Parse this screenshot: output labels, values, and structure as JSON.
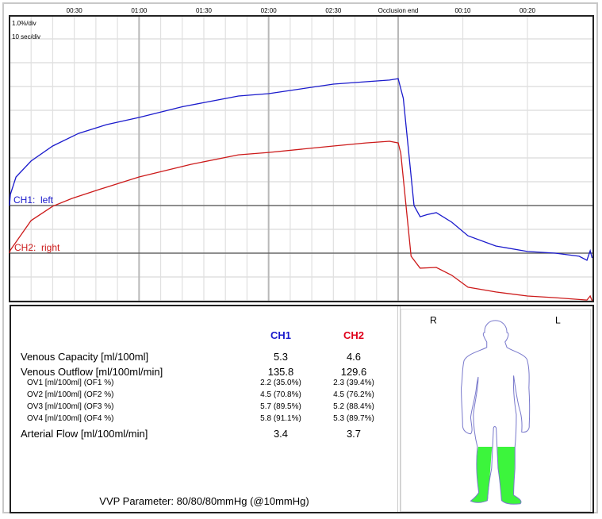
{
  "chart_data": {
    "type": "line",
    "scale_labels": {
      "amplitude": "1.0%/div",
      "time": "10 sec/div"
    },
    "x_ticks_occlusion": [
      {
        "t": 30,
        "label": "00:30"
      },
      {
        "t": 60,
        "label": "01:00"
      },
      {
        "t": 90,
        "label": "01:30"
      },
      {
        "t": 120,
        "label": "02:00"
      },
      {
        "t": 150,
        "label": "02:30"
      }
    ],
    "occlusion_end": {
      "t": 180,
      "label": "Occlusion end"
    },
    "x_ticks_outflow": [
      {
        "t": 10,
        "label": "00:10"
      },
      {
        "t": 20,
        "label": "00:20"
      }
    ],
    "occlusion_range_s": [
      0,
      180
    ],
    "outflow_range_s": [
      0,
      30
    ],
    "y_unit": "% volume change",
    "grid": true,
    "series": [
      {
        "name": "CH1:  left",
        "color": "#1a1acc",
        "baseline_offset_pct": 0,
        "occlusion": [
          [
            0,
            0
          ],
          [
            0.4,
            0.47
          ],
          [
            3,
            1.2
          ],
          [
            10,
            1.87
          ],
          [
            20,
            2.5
          ],
          [
            32,
            3.03
          ],
          [
            45,
            3.4
          ],
          [
            60,
            3.7
          ],
          [
            80,
            4.15
          ],
          [
            106,
            4.6
          ],
          [
            120,
            4.7
          ],
          [
            135,
            4.9
          ],
          [
            150,
            5.1
          ],
          [
            165,
            5.2
          ],
          [
            176,
            5.27
          ],
          [
            180,
            5.33
          ]
        ],
        "outflow": [
          [
            0,
            5.33
          ],
          [
            0.8,
            4.5
          ],
          [
            2.45,
            0
          ],
          [
            3.4,
            -0.47
          ],
          [
            4.5,
            -0.38
          ],
          [
            5.9,
            -0.3
          ],
          [
            8.3,
            -0.7
          ],
          [
            10.8,
            -1.27
          ],
          [
            15.1,
            -1.7
          ],
          [
            20,
            -1.93
          ],
          [
            24.3,
            -2.0
          ],
          [
            28,
            -2.13
          ],
          [
            29.2,
            -2.3
          ],
          [
            29.7,
            -1.9
          ],
          [
            30,
            -2.2
          ]
        ]
      },
      {
        "name": "CH2:  right",
        "color": "#cc1a1a",
        "baseline_offset_pct": -2,
        "occlusion": [
          [
            0,
            0
          ],
          [
            0.4,
            0.13
          ],
          [
            10,
            1.37
          ],
          [
            20,
            1.97
          ],
          [
            29,
            2.3
          ],
          [
            40,
            2.63
          ],
          [
            60,
            3.2
          ],
          [
            84,
            3.73
          ],
          [
            106,
            4.13
          ],
          [
            120,
            4.23
          ],
          [
            150,
            4.5
          ],
          [
            165,
            4.63
          ],
          [
            176,
            4.7
          ],
          [
            180,
            4.63
          ]
        ],
        "outflow": [
          [
            0,
            4.63
          ],
          [
            0.4,
            4.2
          ],
          [
            2.0,
            -0.13
          ],
          [
            3.4,
            -0.63
          ],
          [
            5.9,
            -0.6
          ],
          [
            8.3,
            -0.93
          ],
          [
            10.8,
            -1.43
          ],
          [
            15.1,
            -1.63
          ],
          [
            20,
            -1.8
          ],
          [
            24.3,
            -1.87
          ],
          [
            29.2,
            -1.97
          ],
          [
            29.7,
            -1.8
          ],
          [
            30,
            -2.0
          ]
        ]
      }
    ]
  },
  "results": {
    "columns": [
      {
        "label": "CH1",
        "color": "#1a1acc"
      },
      {
        "label": "CH2",
        "color": "#e0001a"
      }
    ],
    "rows": [
      {
        "label": "Venous Capacity [ml/100ml]",
        "ch1": "5.3",
        "ch2": "4.6",
        "size": "big"
      },
      {
        "label": "Venous Outflow [ml/100ml/min]",
        "ch1": "135.8",
        "ch2": "129.6",
        "size": "big"
      },
      {
        "label": "OV1 [ml/100ml] (OF1 %)",
        "ch1": "2.2 (35.0%)",
        "ch2": "2.3 (39.4%)",
        "size": "small"
      },
      {
        "label": "OV2 [ml/100ml] (OF2 %)",
        "ch1": "4.5 (70.8%)",
        "ch2": "4.5 (76.2%)",
        "size": "small"
      },
      {
        "label": "OV3 [ml/100ml] (OF3 %)",
        "ch1": "5.7 (89.5%)",
        "ch2": "5.2 (88.4%)",
        "size": "small"
      },
      {
        "label": "OV4 [ml/100ml] (OF4 %)",
        "ch1": "5.8 (91.1%)",
        "ch2": "5.3 (89.7%)",
        "size": "small"
      },
      {
        "label": "Arterial Flow [ml/100ml/min]",
        "ch1": "3.4",
        "ch2": "3.7",
        "size": "big"
      }
    ],
    "vvp_parameter": "VVP Parameter: 80/80/80mmHg (@10mmHg)"
  },
  "body_diagram": {
    "right_label": "R",
    "left_label": "L",
    "highlight_color": "#3cf53c",
    "outline_color": "#7a7acc",
    "highlighted_region": "both lower legs"
  }
}
